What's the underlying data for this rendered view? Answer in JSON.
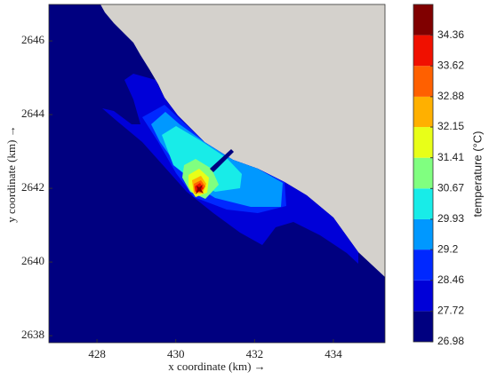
{
  "chart_data": {
    "type": "contour",
    "xlabel": "x coordinate (km) →",
    "ylabel": "y coordinate (km) →",
    "colorbar_label": "temperature (°C)",
    "xlim": [
      426.78,
      435.31
    ],
    "xticks": [
      428,
      430,
      432,
      434
    ],
    "ylim": [
      2637.81,
      2646.99
    ],
    "yticks": [
      2638,
      2640,
      2642,
      2644,
      2646
    ],
    "clim": [
      26.98,
      35.1
    ],
    "levels": [
      26.98,
      27.72,
      28.46,
      29.2,
      29.93,
      30.67,
      31.41,
      32.15,
      32.88,
      33.62,
      34.36
    ],
    "colors": [
      "#000080",
      "#0000d8",
      "#0028ff",
      "#0098ff",
      "#18ece8",
      "#80ff80",
      "#e8ff18",
      "#ffb000",
      "#ff6000",
      "#f01000",
      "#800000"
    ],
    "land_color": "#d4d1cc"
  }
}
